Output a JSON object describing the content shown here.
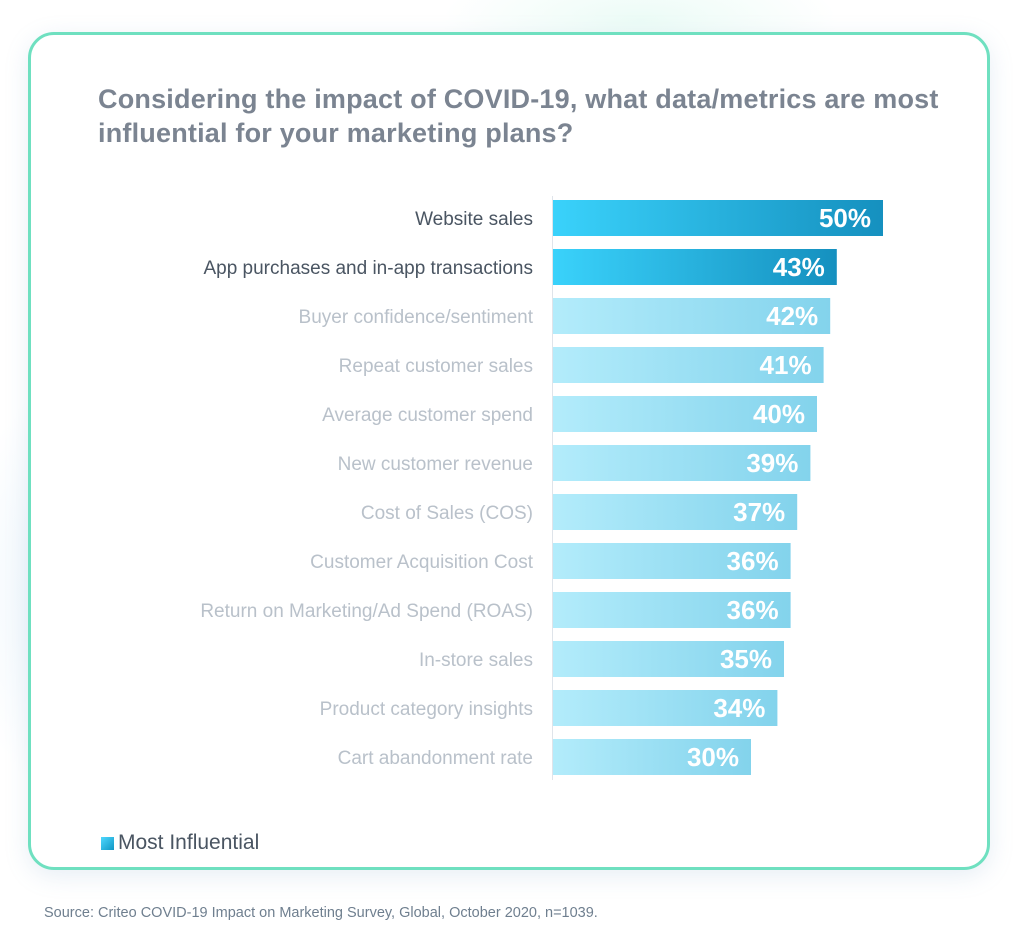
{
  "chart_data": {
    "type": "bar",
    "orientation": "horizontal",
    "title": "Considering the impact of COVID-19, what data/metrics are most influential for your marketing plans?",
    "categories": [
      "Website sales",
      "App purchases and in-app transactions",
      "Buyer confidence/sentiment",
      "Repeat customer sales",
      "Average customer spend",
      "New customer revenue",
      "Cost of Sales (COS)",
      "Customer Acquisition Cost",
      "Return on Marketing/Ad Spend (ROAS)",
      "In-store sales",
      "Product category insights",
      "Cart abandonment rate"
    ],
    "values": [
      50,
      43,
      42,
      41,
      40,
      39,
      37,
      36,
      36,
      35,
      34,
      30
    ],
    "value_labels": [
      "50%",
      "43%",
      "42%",
      "41%",
      "40%",
      "39%",
      "37%",
      "36%",
      "36%",
      "35%",
      "34%",
      "30%"
    ],
    "highlighted": [
      true,
      true,
      false,
      false,
      false,
      false,
      false,
      false,
      false,
      false,
      false,
      false
    ],
    "unit": "%",
    "xlim": [
      0,
      50
    ],
    "grid": false,
    "legend": {
      "position": "bottom-left",
      "label": "Most Influential"
    },
    "colors": {
      "highlight_start": "#3ad2fb",
      "highlight_end": "#1590bf",
      "normal_start": "#b3ecfb",
      "normal_end": "#83d3ec",
      "label_highlight": "#4a5562",
      "label_normal": "#b9c1ca",
      "value_label": "#ffffff"
    }
  },
  "source": "Source: Criteo COVID-19 Impact on Marketing Survey, Global, October 2020, n=1039."
}
